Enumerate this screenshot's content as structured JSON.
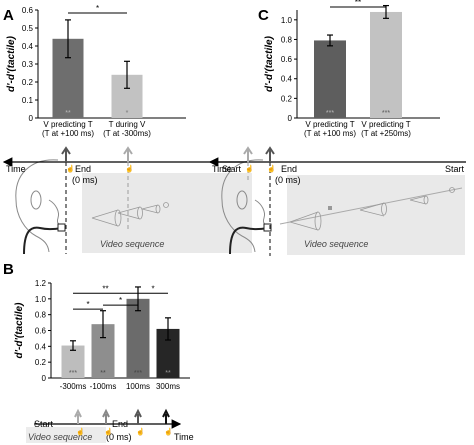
{
  "panels": {
    "A": {
      "letter": "A"
    },
    "B": {
      "letter": "B"
    },
    "C": {
      "letter": "C"
    }
  },
  "chart_data": [
    {
      "panel": "A",
      "type": "bar",
      "ylabel": "d'-d'(tactile)",
      "ylim": [
        0,
        0.6
      ],
      "yticks": [
        "0",
        "0.1",
        "0.2",
        "0.3",
        "0.4",
        "0.5",
        "0.6"
      ],
      "categories": [
        [
          "V predicting T",
          "(T at +100 ms)"
        ],
        [
          "T during V",
          "(T at -300ms)"
        ]
      ],
      "values": [
        0.44,
        0.24
      ],
      "errors": [
        0.105,
        0.075
      ],
      "colors": [
        "#6e6e6e",
        "#c2c2c2"
      ],
      "inbar_labels": [
        "**",
        "*"
      ],
      "inbar_colors": [
        "#bbbbbb",
        "#777777"
      ],
      "comparisons": [
        {
          "from": 0,
          "to": 1,
          "label": "*"
        }
      ]
    },
    {
      "panel": "B",
      "type": "bar",
      "ylabel": "d'-d'(tactile)",
      "ylim": [
        0,
        1.2
      ],
      "yticks": [
        "0",
        "0.2",
        "0.4",
        "0.6",
        "0.8",
        "1.0",
        "1.2"
      ],
      "categories": [
        [
          "-300ms"
        ],
        [
          "-100ms"
        ],
        [
          "100ms"
        ],
        [
          "300ms"
        ]
      ],
      "values": [
        0.41,
        0.68,
        1.0,
        0.62
      ],
      "errors": [
        0.06,
        0.17,
        0.15,
        0.14
      ],
      "colors": [
        "#bdbdbd",
        "#8e8e8e",
        "#6b6b6b",
        "#262626"
      ],
      "inbar_labels": [
        "***",
        "**",
        "***",
        "**"
      ],
      "inbar_colors": [
        "#555555",
        "#444444",
        "#444444",
        "#9a9a9a"
      ],
      "comparisons": [
        {
          "from": 0,
          "to": 2,
          "label": "**",
          "y": 1.07
        },
        {
          "from": 0,
          "to": 1,
          "label": "*",
          "y": 0.87
        },
        {
          "from": 1,
          "to": 2,
          "label": "*",
          "y": 0.92
        },
        {
          "from": 2,
          "to": 3,
          "label": "*",
          "y": 1.07
        }
      ]
    },
    {
      "panel": "C",
      "type": "bar",
      "ylabel": "d'-d'(tactile)",
      "ylim": [
        0,
        1.1
      ],
      "yticks": [
        "0",
        "0.2",
        "0.4",
        "0.6",
        "0.8",
        "1.0"
      ],
      "categories": [
        [
          "V predicting T",
          "(T at +100 ms)"
        ],
        [
          "V predicting T",
          "(T at +250ms)"
        ]
      ],
      "values": [
        0.79,
        1.08
      ],
      "errors": [
        0.055,
        0.065
      ],
      "colors": [
        "#5e5e5e",
        "#c2c2c2"
      ],
      "inbar_labels": [
        "***",
        "***"
      ],
      "inbar_colors": [
        "#bbbbbb",
        "#555555"
      ],
      "comparisons": [
        {
          "from": 0,
          "to": 1,
          "label": "**"
        }
      ]
    }
  ],
  "timelines": {
    "A": {
      "time": "Time",
      "end": "End",
      "end_ms": "(0 ms)",
      "start": "Start",
      "video": "Video sequence"
    },
    "C": {
      "time": "Time",
      "end": "End",
      "end_ms": "(0 ms)",
      "start": "Start",
      "video": "Video sequence"
    },
    "B": {
      "start": "Start",
      "end": "End",
      "end_ms": "(0 ms)",
      "time": "Time",
      "video": "Video sequence"
    }
  },
  "colors": {
    "arrow_dark": "#555555",
    "arrow_light": "#aaaaaa",
    "video_bg": "#e9e9e9"
  }
}
